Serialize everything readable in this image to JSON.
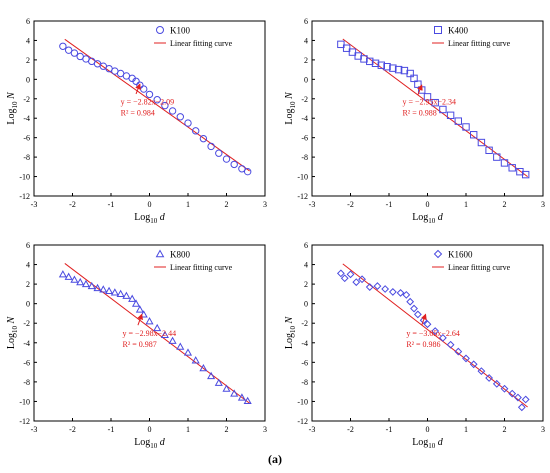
{
  "caption": "(a)",
  "chart_data": [
    {
      "type": "scatter",
      "title": "",
      "xlabel": "Log10 d",
      "ylabel": "Log10 N",
      "xlim": [
        -3,
        3
      ],
      "ylim": [
        -12,
        6
      ],
      "xticks": [
        -3,
        -2,
        -1,
        0,
        1,
        2,
        3
      ],
      "yticks": [
        -12,
        -10,
        -8,
        -6,
        -4,
        -2,
        0,
        2,
        4,
        6
      ],
      "grid": false,
      "legend": "top-right",
      "marker": "circle",
      "series": [
        {
          "name": "K100",
          "x": [
            -2.25,
            -2.1,
            -1.95,
            -1.8,
            -1.65,
            -1.5,
            -1.35,
            -1.2,
            -1.05,
            -0.9,
            -0.75,
            -0.6,
            -0.45,
            -0.35,
            -0.25,
            -0.15,
            0.0,
            0.2,
            0.4,
            0.6,
            0.8,
            1.0,
            1.2,
            1.4,
            1.6,
            1.8,
            2.0,
            2.2,
            2.4,
            2.55
          ],
          "y": [
            3.4,
            3.0,
            2.7,
            2.35,
            2.1,
            1.85,
            1.6,
            1.35,
            1.1,
            0.85,
            0.6,
            0.35,
            0.1,
            -0.2,
            -0.6,
            -1.0,
            -1.55,
            -2.1,
            -2.7,
            -3.25,
            -3.85,
            -4.5,
            -5.3,
            -6.1,
            -6.9,
            -7.6,
            -8.2,
            -8.75,
            -9.2,
            -9.5
          ]
        },
        {
          "name": "Linear fitting curve",
          "type": "line",
          "x": [
            -2.2,
            2.6
          ],
          "y": [
            4.114,
            -9.422
          ]
        }
      ],
      "annotation": {
        "equation": "y = −2.82x−2.09",
        "r2": "R² = 0.984"
      }
    },
    {
      "type": "scatter",
      "title": "",
      "xlabel": "Log10 d",
      "ylabel": "Log10 N",
      "xlim": [
        -3,
        3
      ],
      "ylim": [
        -12,
        6
      ],
      "xticks": [
        -3,
        -2,
        -1,
        0,
        1,
        2,
        3
      ],
      "yticks": [
        -12,
        -10,
        -8,
        -6,
        -4,
        -2,
        0,
        2,
        4,
        6
      ],
      "grid": false,
      "legend": "top-right",
      "marker": "square",
      "series": [
        {
          "name": "K400",
          "x": [
            -2.25,
            -2.1,
            -1.95,
            -1.8,
            -1.65,
            -1.5,
            -1.35,
            -1.2,
            -1.05,
            -0.9,
            -0.75,
            -0.6,
            -0.45,
            -0.35,
            -0.25,
            -0.15,
            0.0,
            0.2,
            0.4,
            0.6,
            0.8,
            1.0,
            1.2,
            1.4,
            1.6,
            1.8,
            2.0,
            2.2,
            2.4,
            2.55
          ],
          "y": [
            3.6,
            3.2,
            2.8,
            2.4,
            2.1,
            1.85,
            1.65,
            1.45,
            1.3,
            1.15,
            1.0,
            0.9,
            0.6,
            0.1,
            -0.5,
            -1.1,
            -1.8,
            -2.4,
            -3.1,
            -3.7,
            -4.3,
            -4.9,
            -5.7,
            -6.5,
            -7.3,
            -8.0,
            -8.6,
            -9.1,
            -9.5,
            -9.8
          ]
        },
        {
          "name": "Linear fitting curve",
          "type": "line",
          "x": [
            -2.2,
            2.6
          ],
          "y": [
            4.15,
            -10.01
          ]
        }
      ],
      "annotation": {
        "equation": "y = −2.95x−2.34",
        "r2": "R² = 0.988"
      }
    },
    {
      "type": "scatter",
      "title": "",
      "xlabel": "Log10 d",
      "ylabel": "Log10 N",
      "xlim": [
        -3,
        3
      ],
      "ylim": [
        -12,
        6
      ],
      "xticks": [
        -3,
        -2,
        -1,
        0,
        1,
        2,
        3
      ],
      "yticks": [
        -12,
        -10,
        -8,
        -6,
        -4,
        -2,
        0,
        2,
        4,
        6
      ],
      "grid": false,
      "legend": "top-right",
      "marker": "triangle",
      "series": [
        {
          "name": "K800",
          "x": [
            -2.25,
            -2.1,
            -1.95,
            -1.8,
            -1.65,
            -1.5,
            -1.35,
            -1.2,
            -1.05,
            -0.9,
            -0.75,
            -0.6,
            -0.45,
            -0.35,
            -0.25,
            -0.15,
            0.0,
            0.2,
            0.4,
            0.6,
            0.8,
            1.0,
            1.2,
            1.4,
            1.6,
            1.8,
            2.0,
            2.2,
            2.4,
            2.55
          ],
          "y": [
            3.0,
            2.75,
            2.45,
            2.2,
            2.0,
            1.8,
            1.6,
            1.45,
            1.3,
            1.15,
            1.0,
            0.8,
            0.5,
            0.0,
            -0.6,
            -1.1,
            -1.8,
            -2.5,
            -3.2,
            -3.8,
            -4.4,
            -5.0,
            -5.8,
            -6.6,
            -7.4,
            -8.1,
            -8.7,
            -9.2,
            -9.6,
            -9.95
          ]
        },
        {
          "name": "Linear fitting curve",
          "type": "line",
          "x": [
            -2.2,
            2.6
          ],
          "y": [
            4.116,
            -10.188
          ]
        }
      ],
      "annotation": {
        "equation": "y = −2.98x−2.44",
        "r2": "R² = 0.987"
      }
    },
    {
      "type": "scatter",
      "title": "",
      "xlabel": "Log10 d",
      "ylabel": "Log10 N",
      "xlim": [
        -3,
        3
      ],
      "ylim": [
        -12,
        6
      ],
      "xticks": [
        -3,
        -2,
        -1,
        0,
        1,
        2,
        3
      ],
      "yticks": [
        -12,
        -10,
        -8,
        -6,
        -4,
        -2,
        0,
        2,
        4,
        6
      ],
      "grid": false,
      "legend": "top-right",
      "marker": "diamond",
      "series": [
        {
          "name": "K1600",
          "x": [
            -2.25,
            -2.15,
            -2.0,
            -1.85,
            -1.7,
            -1.5,
            -1.3,
            -1.1,
            -0.9,
            -0.7,
            -0.55,
            -0.45,
            -0.35,
            -0.25,
            -0.1,
            0.0,
            0.2,
            0.4,
            0.6,
            0.8,
            1.0,
            1.2,
            1.4,
            1.6,
            1.8,
            2.0,
            2.2,
            2.35,
            2.45,
            2.55
          ],
          "y": [
            3.1,
            2.6,
            3.0,
            2.2,
            2.5,
            1.7,
            1.8,
            1.5,
            1.2,
            1.1,
            0.9,
            0.2,
            -0.5,
            -1.1,
            -1.7,
            -2.1,
            -2.8,
            -3.5,
            -4.2,
            -4.9,
            -5.6,
            -6.2,
            -6.9,
            -7.6,
            -8.2,
            -8.7,
            -9.2,
            -9.6,
            -10.6,
            -9.8
          ]
        },
        {
          "name": "Linear fitting curve",
          "type": "line",
          "x": [
            -2.2,
            2.6
          ],
          "y": [
            4.07,
            -10.57
          ]
        }
      ],
      "annotation": {
        "equation": "y = −3.05x−2.64",
        "r2": "R² = 0.986"
      }
    }
  ],
  "colors": {
    "marker": "#4a4ae0",
    "fit": "#e02020",
    "annotation": "#e02020",
    "axis": "#000000"
  }
}
